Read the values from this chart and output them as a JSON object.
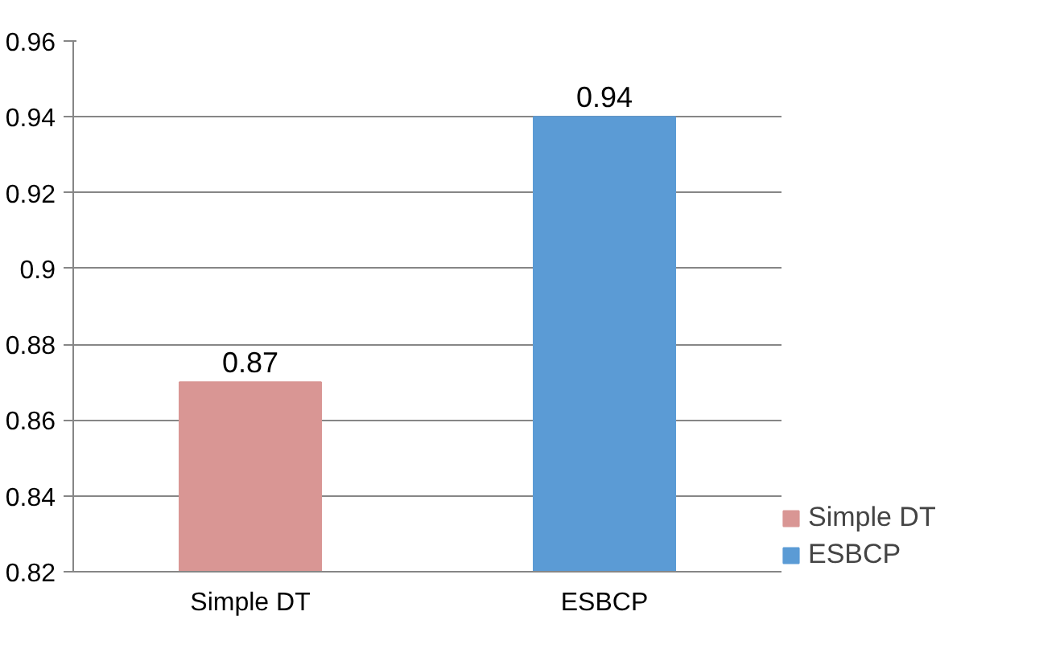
{
  "chart_data": {
    "type": "bar",
    "categories": [
      "Simple DT",
      "ESBCP"
    ],
    "series": [
      {
        "name": "Simple DT",
        "color": "#d99694",
        "values": [
          0.87,
          null
        ]
      },
      {
        "name": "ESBCP",
        "color": "#5b9bd5",
        "values": [
          null,
          0.94
        ]
      }
    ],
    "ylim": [
      0.82,
      0.96
    ],
    "yticks": [
      0.82,
      0.84,
      0.86,
      0.88,
      0.9,
      0.92,
      0.94,
      0.96
    ],
    "grid": "y",
    "legend": "right",
    "data_labels": true
  }
}
